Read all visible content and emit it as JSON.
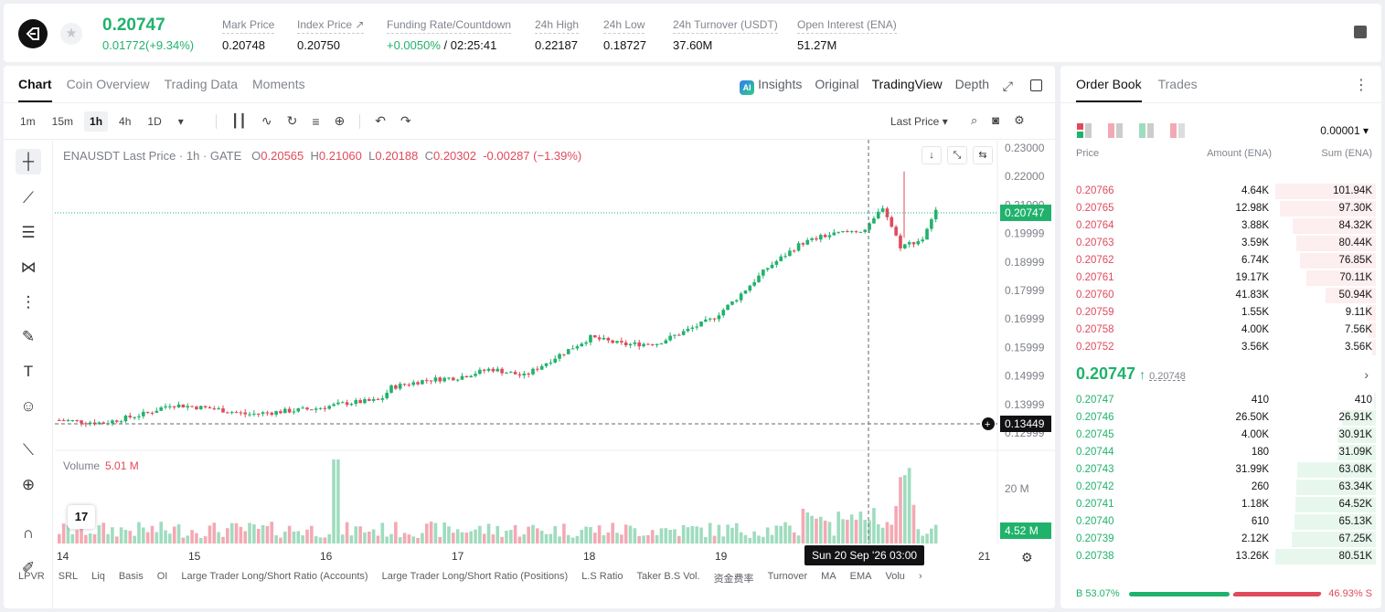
{
  "header": {
    "last_price": "0.20747",
    "change": "0.01772(+9.34%)",
    "stats": [
      {
        "label": "Mark Price",
        "value": "0.20748"
      },
      {
        "label": "Index Price ↗",
        "value": "0.20750"
      },
      {
        "label": "Funding Rate/Countdown",
        "value_green": "+0.0050%",
        "value": " / 02:25:41"
      },
      {
        "label": "24h High",
        "value": "0.22187"
      },
      {
        "label": "24h Low",
        "value": "0.18727"
      },
      {
        "label": "24h Turnover (USDT)",
        "value": "37.60M"
      },
      {
        "label": "Open Interest (ENA)",
        "value": "51.27M"
      }
    ]
  },
  "chart_tabs": [
    "Chart",
    "Coin Overview",
    "Trading Data",
    "Moments"
  ],
  "view_tabs": {
    "insights": "Insights",
    "original": "Original",
    "tradingview": "TradingView",
    "depth": "Depth",
    "ai": "AI"
  },
  "timeframes": [
    "1m",
    "15m",
    "1h",
    "4h",
    "1D"
  ],
  "selected_timeframe": "1h",
  "last_price_selector": "Last Price",
  "legend": {
    "symbol": "ENAUSDT Last Price · 1h · GATE",
    "o_label": "O",
    "o": "0.20565",
    "h_label": "H",
    "h": "0.21060",
    "l_label": "L",
    "l": "0.20188",
    "c_label": "C",
    "c": "0.20302",
    "chg": "-0.00287 (−1.39%)"
  },
  "volume_legend": {
    "label": "Volume",
    "value": "5.01 M"
  },
  "price_labels": {
    "current": "0.20747",
    "cursor": "0.13449",
    "volume": "4.52 M"
  },
  "crosshair_time": "Sun 20 Sep '26   03:00",
  "indicators": [
    "LPVR",
    "SRL",
    "Liq",
    "Basis",
    "OI",
    "Large Trader Long/Short Ratio (Accounts)",
    "Large Trader Long/Short Ratio (Positions)",
    "L.S Ratio",
    "Taker B.S Vol.",
    "资金费率",
    "Turnover",
    "MA",
    "EMA",
    "Volu"
  ],
  "chart_data": {
    "type": "candlestick",
    "title": "ENAUSDT Last Price · 1h · GATE",
    "y_ticks": [
      "0.23000",
      "0.22000",
      "0.21000",
      "0.19999",
      "0.18999",
      "0.17999",
      "0.16999",
      "0.15999",
      "0.14999",
      "0.13999",
      "0.12999"
    ],
    "x_ticks": [
      "14",
      "15",
      "16",
      "17",
      "18",
      "19",
      "20",
      "21"
    ],
    "volume_ticks": [
      "20 M"
    ],
    "ylim": [
      0.125,
      0.235
    ],
    "trend_anchors": [
      {
        "x": 0,
        "price": 0.1345
      },
      {
        "x": 20,
        "price": 0.1335
      },
      {
        "x": 40,
        "price": 0.137
      },
      {
        "x": 50,
        "price": 0.14
      },
      {
        "x": 70,
        "price": 0.1385
      },
      {
        "x": 85,
        "price": 0.1365
      },
      {
        "x": 100,
        "price": 0.1375
      },
      {
        "x": 115,
        "price": 0.1385
      },
      {
        "x": 130,
        "price": 0.1405
      },
      {
        "x": 145,
        "price": 0.1415
      },
      {
        "x": 150,
        "price": 0.146
      },
      {
        "x": 165,
        "price": 0.1485
      },
      {
        "x": 180,
        "price": 0.1495
      },
      {
        "x": 195,
        "price": 0.1525
      },
      {
        "x": 210,
        "price": 0.15
      },
      {
        "x": 225,
        "price": 0.157
      },
      {
        "x": 240,
        "price": 0.1635
      },
      {
        "x": 255,
        "price": 0.161
      },
      {
        "x": 270,
        "price": 0.1615
      },
      {
        "x": 285,
        "price": 0.1665
      },
      {
        "x": 295,
        "price": 0.17
      },
      {
        "x": 305,
        "price": 0.1765
      },
      {
        "x": 320,
        "price": 0.188
      },
      {
        "x": 335,
        "price": 0.1965
      },
      {
        "x": 345,
        "price": 0.199
      },
      {
        "x": 355,
        "price": 0.2005
      },
      {
        "x": 365,
        "price": 0.2015
      },
      {
        "x": 372,
        "price": 0.2095
      },
      {
        "x": 380,
        "price": 0.1955
      },
      {
        "x": 390,
        "price": 0.198
      },
      {
        "x": 396,
        "price": 0.2075
      }
    ]
  },
  "orderbook": {
    "tabs": [
      "Order Book",
      "Trades"
    ],
    "precision": "0.00001",
    "headers": {
      "price": "Price",
      "amount": "Amount (ENA)",
      "sum": "Sum (ENA)"
    },
    "asks": [
      {
        "price": "0.20766",
        "amount": "4.64K",
        "sum": "101.94K",
        "depth": 1.0
      },
      {
        "price": "0.20765",
        "amount": "12.98K",
        "sum": "97.30K",
        "depth": 0.954
      },
      {
        "price": "0.20764",
        "amount": "3.88K",
        "sum": "84.32K",
        "depth": 0.827
      },
      {
        "price": "0.20763",
        "amount": "3.59K",
        "sum": "80.44K",
        "depth": 0.789
      },
      {
        "price": "0.20762",
        "amount": "6.74K",
        "sum": "76.85K",
        "depth": 0.754
      },
      {
        "price": "0.20761",
        "amount": "19.17K",
        "sum": "70.11K",
        "depth": 0.688
      },
      {
        "price": "0.20760",
        "amount": "41.83K",
        "sum": "50.94K",
        "depth": 0.5
      },
      {
        "price": "0.20759",
        "amount": "1.55K",
        "sum": "9.11K",
        "depth": 0.089
      },
      {
        "price": "0.20758",
        "amount": "4.00K",
        "sum": "7.56K",
        "depth": 0.074
      },
      {
        "price": "0.20752",
        "amount": "3.56K",
        "sum": "3.56K",
        "depth": 0.035
      }
    ],
    "mid": {
      "price": "0.20747",
      "arrow": "↑",
      "mark": "0.20748"
    },
    "bids": [
      {
        "price": "0.20747",
        "amount": "410",
        "sum": "410",
        "depth": 0.005
      },
      {
        "price": "0.20746",
        "amount": "26.50K",
        "sum": "26.91K",
        "depth": 0.334
      },
      {
        "price": "0.20745",
        "amount": "4.00K",
        "sum": "30.91K",
        "depth": 0.384
      },
      {
        "price": "0.20744",
        "amount": "180",
        "sum": "31.09K",
        "depth": 0.386
      },
      {
        "price": "0.20743",
        "amount": "31.99K",
        "sum": "63.08K",
        "depth": 0.783
      },
      {
        "price": "0.20742",
        "amount": "260",
        "sum": "63.34K",
        "depth": 0.787
      },
      {
        "price": "0.20741",
        "amount": "1.18K",
        "sum": "64.52K",
        "depth": 0.801
      },
      {
        "price": "0.20740",
        "amount": "610",
        "sum": "65.13K",
        "depth": 0.809
      },
      {
        "price": "0.20739",
        "amount": "2.12K",
        "sum": "67.25K",
        "depth": 0.835
      },
      {
        "price": "0.20738",
        "amount": "13.26K",
        "sum": "80.51K",
        "depth": 1.0
      }
    ],
    "buy_ratio": "B 53.07%",
    "sell_ratio": "46.93% S"
  },
  "colors": {
    "up": "#20b26c",
    "down": "#e04a5b",
    "up_vol": "#9fdcbe",
    "down_vol": "#f3a9b3"
  }
}
